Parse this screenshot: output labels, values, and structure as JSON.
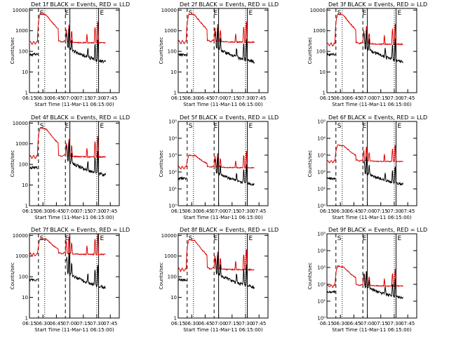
{
  "figure": {
    "xlabel": "Start Time (11-Mar-11 06:15:00)",
    "ylabel": "Counts/sec",
    "x_ticks": [
      "06:15",
      "06:30",
      "06:45",
      "07:00",
      "07:15",
      "07:30",
      "07:45"
    ],
    "colors": {
      "events": "#000000",
      "lld": "#dd0000"
    },
    "marker_labels": [
      "S",
      "E"
    ]
  },
  "chart_data": [
    {
      "type": "line",
      "title": "Det 1f BLACK = Events, RED = LLD",
      "ylog": true,
      "yticks": [
        "1",
        "10",
        "100",
        "1000",
        "10000"
      ],
      "yrange": [
        1,
        12000
      ],
      "xrange_min": [
        0,
        100
      ],
      "events_scale": 1.0,
      "lld_base": 260,
      "lld_peak": 6800,
      "series": [
        {
          "name": "Events",
          "style": "black"
        },
        {
          "name": "LLD",
          "style": "red"
        }
      ],
      "vlines_min": [
        10,
        17,
        40,
        45,
        75,
        77
      ]
    },
    {
      "type": "line",
      "title": "Det 2f BLACK = Events, RED = LLD",
      "ylog": true,
      "yticks": [
        "1",
        "10",
        "100",
        "1000",
        "10000"
      ],
      "yrange": [
        1,
        12000
      ],
      "xrange_min": [
        0,
        100
      ],
      "events_scale": 1.0,
      "lld_base": 280,
      "lld_peak": 6500,
      "series": [
        {
          "name": "Events",
          "style": "black"
        },
        {
          "name": "LLD",
          "style": "red"
        }
      ],
      "vlines_min": [
        10,
        17,
        40,
        45,
        75,
        77
      ]
    },
    {
      "type": "line",
      "title": "Det 3f BLACK = Events, RED = LLD",
      "ylog": true,
      "yticks": [
        "1",
        "10",
        "100",
        "1000",
        "10000"
      ],
      "yrange": [
        1,
        12000
      ],
      "xrange_min": [
        0,
        100
      ],
      "events_scale": 1.0,
      "lld_base": 220,
      "lld_peak": 6500,
      "series": [
        {
          "name": "Events",
          "style": "black"
        },
        {
          "name": "LLD",
          "style": "red"
        }
      ],
      "vlines_min": [
        10,
        17,
        40,
        45,
        75,
        77
      ]
    },
    {
      "type": "line",
      "title": "Det 4f BLACK = Events, RED = LLD",
      "ylog": true,
      "yticks": [
        "1",
        "10",
        "100",
        "1000",
        "10000"
      ],
      "yrange": [
        1,
        12000
      ],
      "xrange_min": [
        0,
        100
      ],
      "events_scale": 1.0,
      "lld_base": 230,
      "lld_peak": 6000,
      "series": [
        {
          "name": "Events",
          "style": "black"
        },
        {
          "name": "LLD",
          "style": "red"
        }
      ],
      "vlines_min": [
        10,
        17,
        40,
        45,
        75,
        77
      ]
    },
    {
      "type": "line",
      "title": "Det 5f BLACK = Events, RED = LLD",
      "ylog": true,
      "yticks": [
        "10⁰",
        "10¹",
        "10²",
        "10³",
        "10⁴",
        "10⁵"
      ],
      "yrange": [
        1,
        100000
      ],
      "xrange_min": [
        0,
        100
      ],
      "events_scale": 0.6,
      "lld_base": 180,
      "lld_peak": 1000,
      "series": [
        {
          "name": "Events",
          "style": "black"
        },
        {
          "name": "LLD",
          "style": "red"
        }
      ],
      "vlines_min": [
        10,
        17,
        40,
        45,
        75,
        77
      ]
    },
    {
      "type": "line",
      "title": "Det 6f BLACK = Events, RED = LLD",
      "ylog": true,
      "yticks": [
        "10⁰",
        "10¹",
        "10²",
        "10³",
        "10⁴",
        "10⁵"
      ],
      "yrange": [
        1,
        100000
      ],
      "xrange_min": [
        0,
        100
      ],
      "events_scale": 0.6,
      "lld_base": 420,
      "lld_peak": 4000,
      "series": [
        {
          "name": "Events",
          "style": "black"
        },
        {
          "name": "LLD",
          "style": "red"
        }
      ],
      "vlines_min": [
        10,
        17,
        40,
        45,
        75,
        77
      ]
    },
    {
      "type": "line",
      "title": "Det 7f BLACK = Events, RED = LLD",
      "ylog": true,
      "yticks": [
        "1",
        "10",
        "100",
        "1000",
        "10000"
      ],
      "yrange": [
        1,
        12000
      ],
      "xrange_min": [
        0,
        100
      ],
      "events_scale": 1.0,
      "lld_base": 1200,
      "lld_peak": 7000,
      "series": [
        {
          "name": "Events",
          "style": "black"
        },
        {
          "name": "LLD",
          "style": "red"
        }
      ],
      "vlines_min": [
        10,
        17,
        40,
        45,
        75,
        77
      ]
    },
    {
      "type": "line",
      "title": "Det 8f BLACK = Events, RED = LLD",
      "ylog": true,
      "yticks": [
        "1",
        "10",
        "100",
        "1000",
        "10000"
      ],
      "yrange": [
        1,
        12000
      ],
      "xrange_min": [
        0,
        100
      ],
      "events_scale": 1.0,
      "lld_base": 220,
      "lld_peak": 6500,
      "series": [
        {
          "name": "Events",
          "style": "black"
        },
        {
          "name": "LLD",
          "style": "red"
        }
      ],
      "vlines_min": [
        10,
        17,
        40,
        45,
        75,
        77
      ]
    },
    {
      "type": "line",
      "title": "Det 9f BLACK = Events, RED = LLD",
      "ylog": true,
      "yticks": [
        "10⁰",
        "10¹",
        "10²",
        "10³",
        "10⁴",
        "10⁵"
      ],
      "yrange": [
        1,
        100000
      ],
      "xrange_min": [
        0,
        100
      ],
      "events_scale": 0.5,
      "lld_base": 80,
      "lld_peak": 1200,
      "series": [
        {
          "name": "Events",
          "style": "black"
        },
        {
          "name": "LLD",
          "style": "red"
        }
      ],
      "vlines_min": [
        10,
        17,
        40,
        45,
        75,
        77
      ]
    }
  ]
}
